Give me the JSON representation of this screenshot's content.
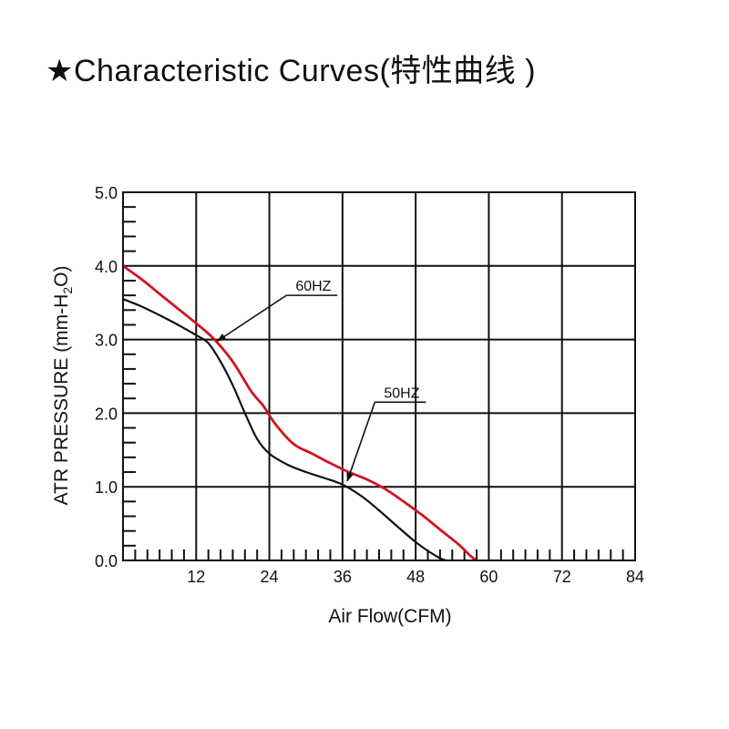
{
  "title": "★Characteristic Curves(特性曲线 )",
  "chart_data": {
    "type": "line",
    "xlabel": "Air Flow(CFM)",
    "ylabel": {
      "prefix": "ATR PRESSURE (mm-H",
      "sub": "2",
      "suffix": "O)"
    },
    "xlim": [
      0,
      84
    ],
    "ylim": [
      0,
      5
    ],
    "x_ticks": [
      12,
      24,
      36,
      48,
      60,
      72,
      84
    ],
    "y_ticks": [
      "0.0",
      "1.0",
      "2.0",
      "3.0",
      "4.0",
      "5.0"
    ],
    "grid": true,
    "series": [
      {
        "name": "60HZ",
        "color": "#d0141f",
        "points": [
          [
            0,
            4.0
          ],
          [
            3,
            3.82
          ],
          [
            6,
            3.62
          ],
          [
            9,
            3.42
          ],
          [
            12,
            3.22
          ],
          [
            15,
            3.0
          ],
          [
            18,
            2.7
          ],
          [
            21,
            2.3
          ],
          [
            23,
            2.1
          ],
          [
            25,
            1.85
          ],
          [
            28,
            1.58
          ],
          [
            31,
            1.45
          ],
          [
            34,
            1.32
          ],
          [
            37,
            1.2
          ],
          [
            40,
            1.1
          ],
          [
            43,
            0.97
          ],
          [
            46,
            0.8
          ],
          [
            49,
            0.62
          ],
          [
            52,
            0.42
          ],
          [
            55,
            0.22
          ],
          [
            57,
            0.06
          ],
          [
            58,
            0
          ]
        ]
      },
      {
        "name": "50HZ",
        "color": "#111111",
        "points": [
          [
            0,
            3.55
          ],
          [
            3,
            3.45
          ],
          [
            6,
            3.33
          ],
          [
            9,
            3.2
          ],
          [
            12,
            3.06
          ],
          [
            14,
            2.95
          ],
          [
            16,
            2.7
          ],
          [
            18,
            2.38
          ],
          [
            20,
            2.0
          ],
          [
            22,
            1.65
          ],
          [
            24,
            1.45
          ],
          [
            27,
            1.3
          ],
          [
            30,
            1.2
          ],
          [
            33,
            1.12
          ],
          [
            36,
            1.03
          ],
          [
            39,
            0.88
          ],
          [
            42,
            0.68
          ],
          [
            45,
            0.46
          ],
          [
            48,
            0.25
          ],
          [
            50,
            0.13
          ],
          [
            52,
            0.03
          ],
          [
            53,
            0
          ]
        ]
      }
    ],
    "annotations": [
      {
        "label": "60HZ",
        "text_at": [
          28,
          3.6
        ],
        "arrow_to": [
          15.5,
          2.98
        ]
      },
      {
        "label": "50HZ",
        "text_at": [
          42.5,
          2.15
        ],
        "arrow_to": [
          36.8,
          1.08
        ]
      }
    ]
  }
}
